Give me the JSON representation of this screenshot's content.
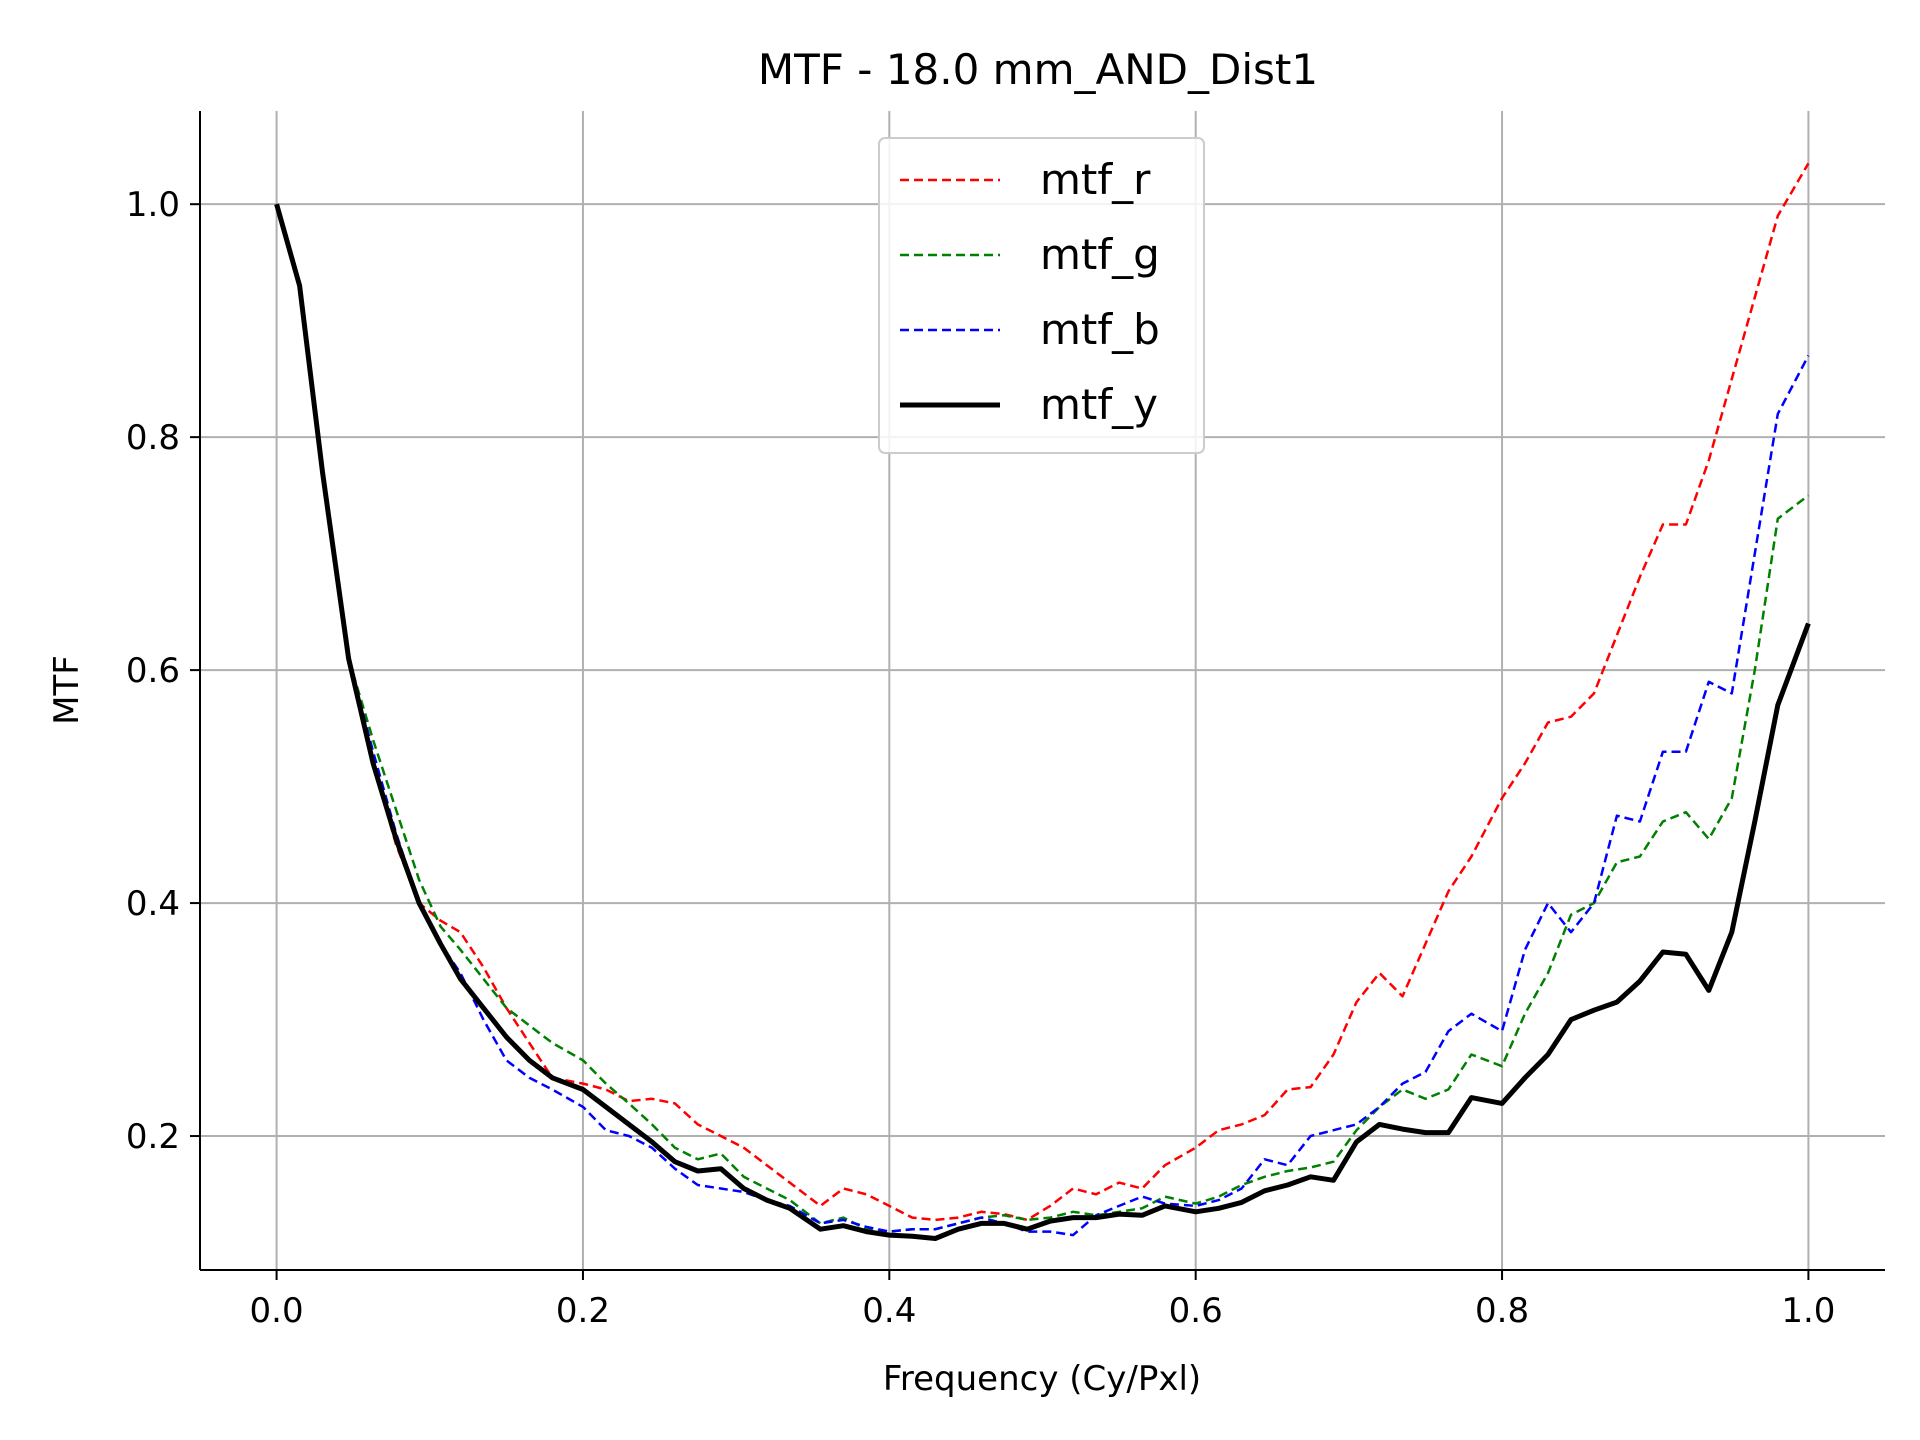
{
  "chart_data": {
    "type": "line",
    "title": "MTF - 18.0 mm_AND_Dist1",
    "xlabel": "Frequency (Cy/Pxl)",
    "ylabel": "MTF",
    "xlim": [
      -0.05,
      1.05
    ],
    "ylim": [
      0.085,
      1.08
    ],
    "xticks": [
      0.0,
      0.2,
      0.4,
      0.6,
      0.8,
      1.0
    ],
    "xtick_labels": [
      "0.0",
      "0.2",
      "0.4",
      "0.6",
      "0.8",
      "1.0"
    ],
    "yticks": [
      0.2,
      0.4,
      0.6,
      0.8,
      1.0
    ],
    "ytick_labels": [
      "0.2",
      "0.4",
      "0.6",
      "0.8",
      "1.0"
    ],
    "grid": true,
    "legend_position": "top-center",
    "series": [
      {
        "name": "mtf_r",
        "color": "#ff0000",
        "style": "dashed",
        "x": [
          0.0,
          0.015,
          0.03,
          0.047,
          0.063,
          0.078,
          0.093,
          0.107,
          0.12,
          0.135,
          0.15,
          0.165,
          0.18,
          0.2,
          0.215,
          0.23,
          0.245,
          0.26,
          0.275,
          0.29,
          0.305,
          0.32,
          0.335,
          0.355,
          0.37,
          0.385,
          0.4,
          0.415,
          0.43,
          0.445,
          0.46,
          0.475,
          0.49,
          0.505,
          0.52,
          0.535,
          0.55,
          0.565,
          0.58,
          0.6,
          0.615,
          0.63,
          0.645,
          0.66,
          0.675,
          0.69,
          0.705,
          0.72,
          0.735,
          0.75,
          0.765,
          0.78,
          0.8,
          0.815,
          0.83,
          0.845,
          0.86,
          0.875,
          0.89,
          0.905,
          0.92,
          0.935,
          0.95,
          0.965,
          0.98,
          1.0
        ],
        "y": [
          1.0,
          0.93,
          0.77,
          0.61,
          0.52,
          0.45,
          0.4,
          0.385,
          0.375,
          0.345,
          0.31,
          0.28,
          0.25,
          0.245,
          0.24,
          0.23,
          0.232,
          0.228,
          0.21,
          0.2,
          0.19,
          0.175,
          0.16,
          0.14,
          0.155,
          0.15,
          0.14,
          0.13,
          0.128,
          0.13,
          0.135,
          0.133,
          0.128,
          0.14,
          0.155,
          0.15,
          0.16,
          0.155,
          0.175,
          0.19,
          0.205,
          0.21,
          0.218,
          0.24,
          0.242,
          0.27,
          0.315,
          0.34,
          0.32,
          0.365,
          0.41,
          0.44,
          0.49,
          0.52,
          0.555,
          0.56,
          0.58,
          0.63,
          0.68,
          0.725,
          0.725,
          0.78,
          0.85,
          0.92,
          0.99,
          1.035
        ]
      },
      {
        "name": "mtf_g",
        "color": "#008000",
        "style": "dashed",
        "x": [
          0.0,
          0.015,
          0.03,
          0.047,
          0.063,
          0.078,
          0.093,
          0.107,
          0.12,
          0.135,
          0.15,
          0.165,
          0.18,
          0.2,
          0.215,
          0.23,
          0.245,
          0.26,
          0.275,
          0.29,
          0.305,
          0.32,
          0.335,
          0.355,
          0.37,
          0.385,
          0.4,
          0.415,
          0.43,
          0.445,
          0.46,
          0.475,
          0.49,
          0.505,
          0.52,
          0.535,
          0.55,
          0.565,
          0.58,
          0.6,
          0.615,
          0.63,
          0.645,
          0.66,
          0.675,
          0.69,
          0.705,
          0.72,
          0.735,
          0.75,
          0.765,
          0.78,
          0.8,
          0.815,
          0.83,
          0.845,
          0.86,
          0.875,
          0.89,
          0.905,
          0.92,
          0.935,
          0.95,
          0.965,
          0.98,
          1.0
        ],
        "y": [
          1.0,
          0.93,
          0.77,
          0.61,
          0.54,
          0.48,
          0.42,
          0.38,
          0.36,
          0.335,
          0.31,
          0.295,
          0.28,
          0.265,
          0.245,
          0.228,
          0.21,
          0.19,
          0.18,
          0.185,
          0.165,
          0.155,
          0.145,
          0.125,
          0.13,
          0.12,
          0.118,
          0.12,
          0.12,
          0.125,
          0.13,
          0.132,
          0.128,
          0.13,
          0.135,
          0.132,
          0.135,
          0.138,
          0.148,
          0.142,
          0.148,
          0.158,
          0.165,
          0.17,
          0.173,
          0.178,
          0.205,
          0.225,
          0.24,
          0.232,
          0.24,
          0.27,
          0.26,
          0.305,
          0.34,
          0.39,
          0.4,
          0.435,
          0.44,
          0.47,
          0.478,
          0.455,
          0.49,
          0.6,
          0.73,
          0.75
        ]
      },
      {
        "name": "mtf_b",
        "color": "#0000ff",
        "style": "dashed",
        "x": [
          0.0,
          0.015,
          0.03,
          0.047,
          0.063,
          0.078,
          0.093,
          0.107,
          0.12,
          0.135,
          0.15,
          0.165,
          0.18,
          0.2,
          0.215,
          0.23,
          0.245,
          0.26,
          0.275,
          0.29,
          0.305,
          0.32,
          0.335,
          0.355,
          0.37,
          0.385,
          0.4,
          0.415,
          0.43,
          0.445,
          0.46,
          0.475,
          0.49,
          0.505,
          0.52,
          0.535,
          0.55,
          0.565,
          0.58,
          0.6,
          0.615,
          0.63,
          0.645,
          0.66,
          0.675,
          0.69,
          0.705,
          0.72,
          0.735,
          0.75,
          0.765,
          0.78,
          0.8,
          0.815,
          0.83,
          0.845,
          0.86,
          0.875,
          0.89,
          0.905,
          0.92,
          0.935,
          0.95,
          0.965,
          0.98,
          1.0
        ],
        "y": [
          1.0,
          0.93,
          0.77,
          0.61,
          0.53,
          0.46,
          0.4,
          0.365,
          0.34,
          0.3,
          0.265,
          0.25,
          0.24,
          0.225,
          0.205,
          0.2,
          0.19,
          0.172,
          0.158,
          0.155,
          0.152,
          0.145,
          0.14,
          0.125,
          0.128,
          0.122,
          0.118,
          0.12,
          0.12,
          0.125,
          0.13,
          0.125,
          0.118,
          0.118,
          0.115,
          0.132,
          0.14,
          0.148,
          0.142,
          0.14,
          0.145,
          0.155,
          0.18,
          0.175,
          0.2,
          0.205,
          0.21,
          0.225,
          0.245,
          0.255,
          0.29,
          0.305,
          0.29,
          0.36,
          0.4,
          0.375,
          0.4,
          0.475,
          0.47,
          0.53,
          0.53,
          0.59,
          0.58,
          0.7,
          0.82,
          0.87
        ]
      },
      {
        "name": "mtf_y",
        "color": "#000000",
        "style": "solid",
        "x": [
          0.0,
          0.015,
          0.03,
          0.047,
          0.063,
          0.078,
          0.093,
          0.107,
          0.12,
          0.135,
          0.15,
          0.165,
          0.18,
          0.2,
          0.215,
          0.23,
          0.245,
          0.26,
          0.275,
          0.29,
          0.305,
          0.32,
          0.335,
          0.355,
          0.37,
          0.385,
          0.4,
          0.415,
          0.43,
          0.445,
          0.46,
          0.475,
          0.49,
          0.505,
          0.52,
          0.535,
          0.55,
          0.565,
          0.58,
          0.6,
          0.615,
          0.63,
          0.645,
          0.66,
          0.675,
          0.69,
          0.705,
          0.72,
          0.735,
          0.75,
          0.765,
          0.78,
          0.8,
          0.815,
          0.83,
          0.845,
          0.86,
          0.875,
          0.89,
          0.905,
          0.92,
          0.935,
          0.95,
          0.965,
          0.98,
          1.0
        ],
        "y": [
          1.0,
          0.93,
          0.77,
          0.61,
          0.52,
          0.455,
          0.4,
          0.365,
          0.335,
          0.31,
          0.285,
          0.265,
          0.25,
          0.24,
          0.225,
          0.21,
          0.195,
          0.178,
          0.17,
          0.172,
          0.155,
          0.145,
          0.138,
          0.12,
          0.123,
          0.118,
          0.115,
          0.114,
          0.112,
          0.12,
          0.125,
          0.125,
          0.12,
          0.127,
          0.13,
          0.13,
          0.133,
          0.132,
          0.14,
          0.135,
          0.138,
          0.143,
          0.153,
          0.158,
          0.165,
          0.162,
          0.195,
          0.21,
          0.206,
          0.203,
          0.203,
          0.233,
          0.228,
          0.25,
          0.27,
          0.3,
          0.308,
          0.315,
          0.333,
          0.358,
          0.356,
          0.325,
          0.375,
          0.47,
          0.57,
          0.64
        ]
      }
    ]
  }
}
